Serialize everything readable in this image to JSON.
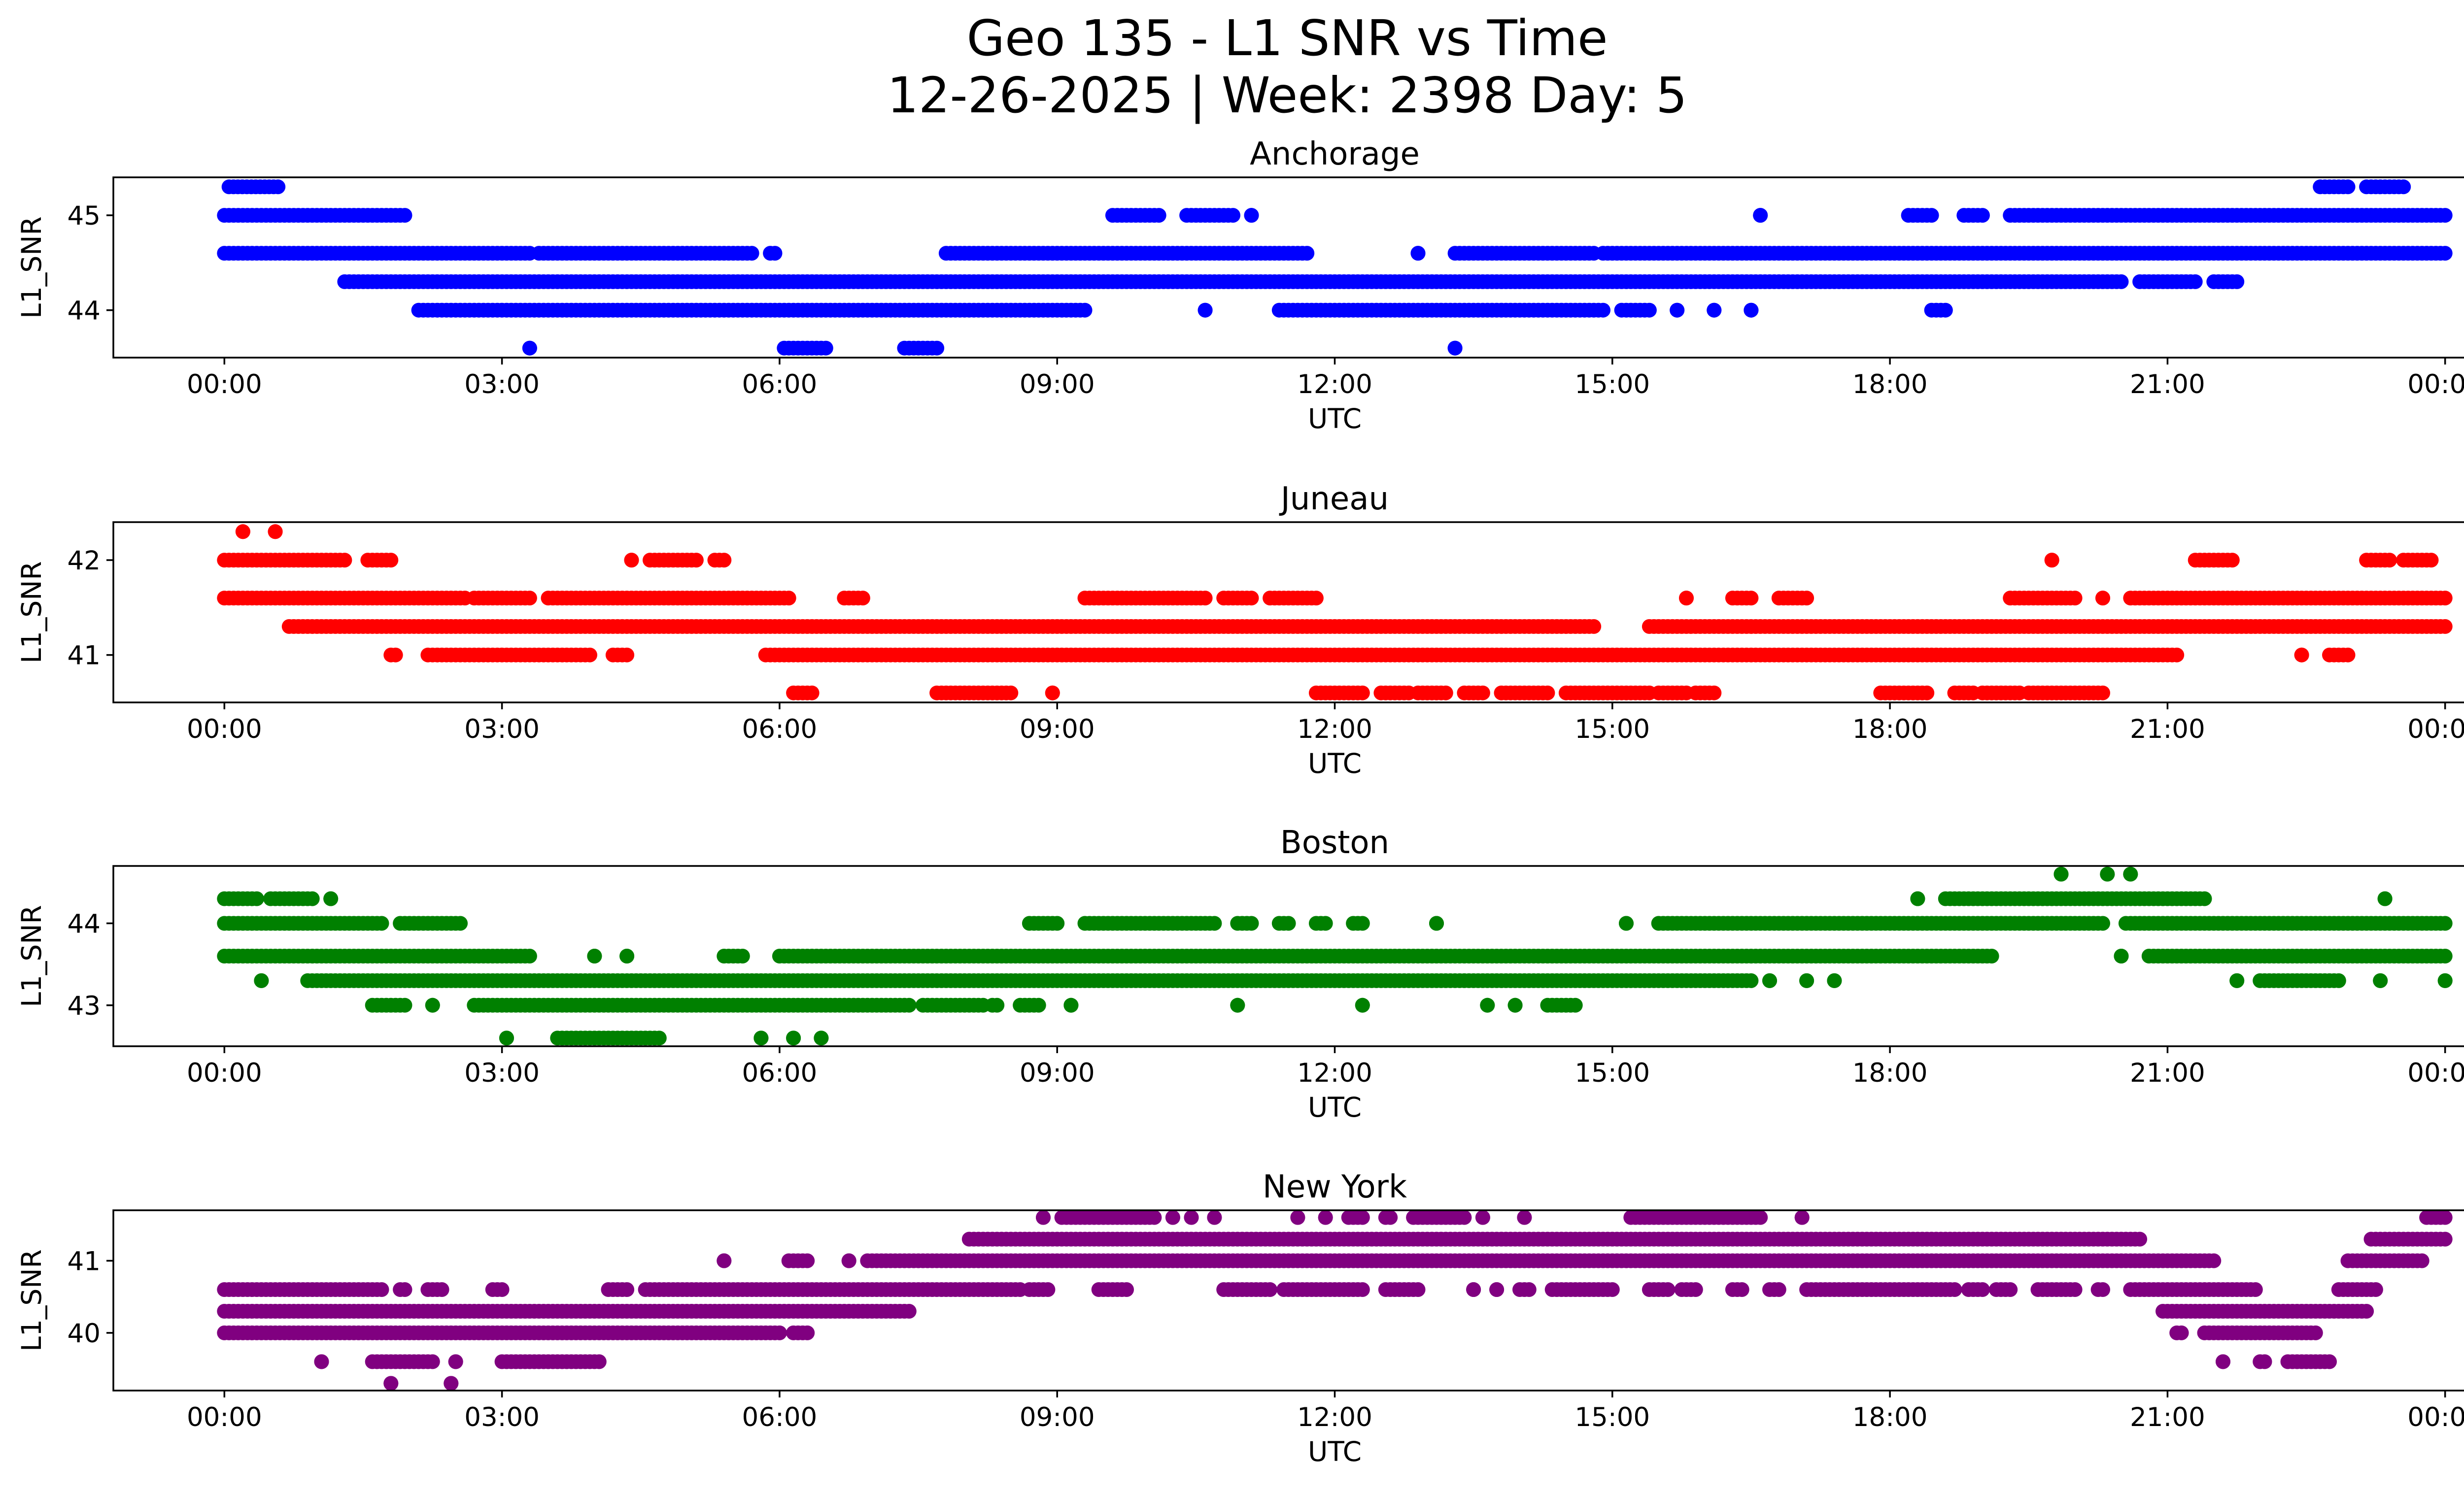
{
  "figure": {
    "title_line1": "Geo 135 - L1 SNR vs Time",
    "title_line2": "12-26-2025 | Week: 2398 Day: 5"
  },
  "chart_data": [
    {
      "type": "scatter",
      "title": "Anchorage",
      "xlabel": "UTC",
      "ylabel": "L1_SNR",
      "color": "#0000ff",
      "xlim": [
        -1.2,
        25.2
      ],
      "ylim": [
        43.5,
        45.4
      ],
      "xticks": [
        "00:00",
        "03:00",
        "06:00",
        "09:00",
        "12:00",
        "15:00",
        "18:00",
        "21:00",
        "00:00"
      ],
      "yticks": [
        44,
        45
      ],
      "series": [
        {
          "y": 45.3,
          "segments": [
            [
              0.05,
              0.58
            ],
            [
              22.65,
              22.95
            ],
            [
              23.15,
              23.55
            ]
          ]
        },
        {
          "y": 45.0,
          "segments": [
            [
              0.0,
              1.95
            ],
            [
              9.6,
              10.1
            ],
            [
              10.4,
              10.9
            ],
            [
              11.1,
              11.1
            ],
            [
              16.6,
              16.6
            ],
            [
              18.2,
              18.45
            ],
            [
              18.8,
              19.0
            ],
            [
              19.3,
              24.0
            ]
          ]
        },
        {
          "y": 44.6,
          "segments": [
            [
              0.0,
              3.3
            ],
            [
              3.4,
              5.7
            ],
            [
              5.9,
              5.95
            ],
            [
              7.8,
              11.7
            ],
            [
              12.9,
              12.9
            ],
            [
              13.3,
              14.8
            ],
            [
              14.9,
              24.0
            ]
          ]
        },
        {
          "y": 44.3,
          "segments": [
            [
              1.3,
              20.5
            ],
            [
              20.7,
              21.3
            ],
            [
              21.5,
              21.75
            ]
          ]
        },
        {
          "y": 44.0,
          "segments": [
            [
              2.1,
              9.3
            ],
            [
              10.6,
              10.6
            ],
            [
              11.4,
              14.9
            ],
            [
              15.1,
              15.4
            ],
            [
              15.7,
              15.7
            ],
            [
              16.1,
              16.1
            ],
            [
              16.5,
              16.5
            ],
            [
              18.45,
              18.6
            ]
          ]
        },
        {
          "y": 43.6,
          "segments": [
            [
              3.3,
              3.3
            ],
            [
              6.05,
              6.5
            ],
            [
              7.35,
              7.7
            ],
            [
              13.3,
              13.3
            ]
          ]
        }
      ]
    },
    {
      "type": "scatter",
      "title": "Juneau",
      "xlabel": "UTC",
      "ylabel": "L1_SNR",
      "color": "#ff0000",
      "xlim": [
        -1.2,
        25.2
      ],
      "ylim": [
        40.5,
        42.4
      ],
      "xticks": [
        "00:00",
        "03:00",
        "06:00",
        "09:00",
        "12:00",
        "15:00",
        "18:00",
        "21:00",
        "00:00"
      ],
      "yticks": [
        41,
        42
      ],
      "series": [
        {
          "y": 42.3,
          "segments": [
            [
              0.2,
              0.2
            ],
            [
              0.55,
              0.55
            ]
          ]
        },
        {
          "y": 42.0,
          "segments": [
            [
              0.0,
              1.3
            ],
            [
              1.55,
              1.8
            ],
            [
              4.4,
              4.4
            ],
            [
              4.6,
              5.1
            ],
            [
              5.3,
              5.4
            ],
            [
              19.75,
              19.75
            ],
            [
              21.3,
              21.7
            ],
            [
              23.15,
              23.4
            ],
            [
              23.55,
              23.85
            ]
          ]
        },
        {
          "y": 41.6,
          "segments": [
            [
              0.0,
              2.6
            ],
            [
              2.7,
              3.3
            ],
            [
              3.5,
              6.1
            ],
            [
              6.7,
              6.9
            ],
            [
              9.3,
              10.6
            ],
            [
              10.8,
              11.1
            ],
            [
              11.3,
              11.8
            ],
            [
              15.8,
              15.8
            ],
            [
              16.3,
              16.5
            ],
            [
              16.8,
              17.1
            ],
            [
              19.3,
              20.0
            ],
            [
              20.3,
              20.3
            ],
            [
              20.6,
              24.0
            ]
          ]
        },
        {
          "y": 41.3,
          "segments": [
            [
              0.7,
              14.8
            ],
            [
              15.4,
              24.0
            ]
          ]
        },
        {
          "y": 41.0,
          "segments": [
            [
              1.8,
              1.85
            ],
            [
              2.2,
              3.95
            ],
            [
              4.2,
              4.35
            ],
            [
              5.85,
              21.1
            ],
            [
              22.45,
              22.45
            ],
            [
              22.75,
              22.95
            ]
          ]
        },
        {
          "y": 40.6,
          "segments": [
            [
              6.15,
              6.35
            ],
            [
              7.7,
              8.5
            ],
            [
              8.95,
              8.95
            ],
            [
              11.8,
              12.3
            ],
            [
              12.5,
              12.8
            ],
            [
              12.9,
              13.2
            ],
            [
              13.4,
              13.6
            ],
            [
              13.8,
              14.3
            ],
            [
              14.5,
              15.4
            ],
            [
              15.5,
              15.8
            ],
            [
              15.9,
              16.1
            ],
            [
              17.9,
              18.4
            ],
            [
              18.7,
              18.9
            ],
            [
              19.0,
              19.4
            ],
            [
              19.5,
              20.3
            ]
          ]
        }
      ]
    },
    {
      "type": "scatter",
      "title": "Boston",
      "xlabel": "UTC",
      "ylabel": "L1_SNR",
      "color": "#008000",
      "xlim": [
        -1.2,
        25.2
      ],
      "ylim": [
        42.5,
        44.7
      ],
      "xticks": [
        "00:00",
        "03:00",
        "06:00",
        "09:00",
        "12:00",
        "15:00",
        "18:00",
        "21:00",
        "00:00"
      ],
      "yticks": [
        43,
        44
      ],
      "series": [
        {
          "y": 44.6,
          "segments": [
            [
              19.85,
              19.85
            ],
            [
              20.35,
              20.35
            ],
            [
              20.6,
              20.6
            ]
          ]
        },
        {
          "y": 44.3,
          "segments": [
            [
              0.0,
              0.35
            ],
            [
              0.5,
              0.95
            ],
            [
              1.15,
              1.15
            ],
            [
              18.3,
              18.3
            ],
            [
              18.6,
              21.4
            ],
            [
              23.35,
              23.35
            ]
          ]
        },
        {
          "y": 44.0,
          "segments": [
            [
              0.0,
              1.7
            ],
            [
              1.9,
              2.55
            ],
            [
              8.7,
              9.0
            ],
            [
              9.3,
              10.7
            ],
            [
              10.95,
              11.1
            ],
            [
              11.4,
              11.5
            ],
            [
              11.8,
              11.9
            ],
            [
              12.2,
              12.3
            ],
            [
              13.1,
              13.1
            ],
            [
              15.15,
              15.15
            ],
            [
              15.5,
              20.3
            ],
            [
              20.55,
              24.0
            ]
          ]
        },
        {
          "y": 43.6,
          "segments": [
            [
              0.0,
              3.3
            ],
            [
              4.0,
              4.0
            ],
            [
              4.35,
              4.35
            ],
            [
              5.4,
              5.6
            ],
            [
              6.0,
              19.1
            ],
            [
              20.5,
              20.5
            ],
            [
              20.8,
              21.1
            ],
            [
              21.15,
              24.0
            ]
          ]
        },
        {
          "y": 43.3,
          "segments": [
            [
              0.4,
              0.4
            ],
            [
              0.9,
              16.5
            ],
            [
              16.7,
              16.7
            ],
            [
              17.1,
              17.1
            ],
            [
              17.4,
              17.4
            ],
            [
              21.75,
              21.75
            ],
            [
              22.0,
              22.85
            ],
            [
              23.3,
              23.3
            ],
            [
              24.0,
              24.0
            ]
          ]
        },
        {
          "y": 43.0,
          "segments": [
            [
              1.6,
              1.95
            ],
            [
              2.25,
              2.25
            ],
            [
              2.7,
              7.4
            ],
            [
              7.55,
              8.2
            ],
            [
              8.3,
              8.35
            ],
            [
              8.6,
              8.8
            ],
            [
              9.15,
              9.15
            ],
            [
              10.95,
              10.95
            ],
            [
              12.3,
              12.3
            ],
            [
              13.65,
              13.65
            ],
            [
              13.95,
              13.95
            ],
            [
              14.3,
              14.6
            ]
          ]
        },
        {
          "y": 42.6,
          "segments": [
            [
              3.05,
              3.05
            ],
            [
              3.6,
              4.7
            ],
            [
              5.8,
              5.8
            ],
            [
              6.15,
              6.15
            ],
            [
              6.45,
              6.45
            ]
          ]
        }
      ]
    },
    {
      "type": "scatter",
      "title": "New York",
      "xlabel": "UTC",
      "ylabel": "L1_SNR",
      "color": "#800080",
      "xlim": [
        -1.2,
        25.2
      ],
      "ylim": [
        39.2,
        41.7
      ],
      "xticks": [
        "00:00",
        "03:00",
        "06:00",
        "09:00",
        "12:00",
        "15:00",
        "18:00",
        "21:00",
        "00:00"
      ],
      "yticks": [
        40,
        41
      ],
      "series": [
        {
          "y": 41.6,
          "segments": [
            [
              8.85,
              8.85
            ],
            [
              9.05,
              10.05
            ],
            [
              10.25,
              10.25
            ],
            [
              10.45,
              10.45
            ],
            [
              10.7,
              10.7
            ],
            [
              11.6,
              11.6
            ],
            [
              11.9,
              11.9
            ],
            [
              12.15,
              12.3
            ],
            [
              12.55,
              12.6
            ],
            [
              12.85,
              13.4
            ],
            [
              13.6,
              13.6
            ],
            [
              14.05,
              14.05
            ],
            [
              15.2,
              16.6
            ],
            [
              17.05,
              17.05
            ],
            [
              23.8,
              24.0
            ]
          ]
        },
        {
          "y": 41.3,
          "segments": [
            [
              8.05,
              20.7
            ],
            [
              23.2,
              24.0
            ]
          ]
        },
        {
          "y": 41.0,
          "segments": [
            [
              5.4,
              5.4
            ],
            [
              6.1,
              6.3
            ],
            [
              6.75,
              6.75
            ],
            [
              6.95,
              21.5
            ],
            [
              22.95,
              23.75
            ]
          ]
        },
        {
          "y": 40.6,
          "segments": [
            [
              0.0,
              1.7
            ],
            [
              1.9,
              1.95
            ],
            [
              2.2,
              2.35
            ],
            [
              2.9,
              3.0
            ],
            [
              4.15,
              4.35
            ],
            [
              4.55,
              8.6
            ],
            [
              8.7,
              8.9
            ],
            [
              9.45,
              9.75
            ],
            [
              10.8,
              11.3
            ],
            [
              11.45,
              12.3
            ],
            [
              12.55,
              12.9
            ],
            [
              13.5,
              13.5
            ],
            [
              13.75,
              13.75
            ],
            [
              14.0,
              14.1
            ],
            [
              14.35,
              15.0
            ],
            [
              15.4,
              15.6
            ],
            [
              15.75,
              15.9
            ],
            [
              16.3,
              16.4
            ],
            [
              16.7,
              16.8
            ],
            [
              17.1,
              18.7
            ],
            [
              18.85,
              19.0
            ],
            [
              19.15,
              19.3
            ],
            [
              19.6,
              20.0
            ],
            [
              20.25,
              20.3
            ],
            [
              20.6,
              21.95
            ],
            [
              22.85,
              23.25
            ]
          ]
        },
        {
          "y": 40.3,
          "segments": [
            [
              0.0,
              7.4
            ],
            [
              20.95,
              23.15
            ]
          ]
        },
        {
          "y": 40.0,
          "segments": [
            [
              0.0,
              6.0
            ],
            [
              6.15,
              6.3
            ],
            [
              21.1,
              21.15
            ],
            [
              21.4,
              22.6
            ]
          ]
        },
        {
          "y": 39.6,
          "segments": [
            [
              1.05,
              1.05
            ],
            [
              1.6,
              2.25
            ],
            [
              2.5,
              2.5
            ],
            [
              3.0,
              4.05
            ],
            [
              21.6,
              21.6
            ],
            [
              22.0,
              22.05
            ],
            [
              22.3,
              22.75
            ]
          ]
        },
        {
          "y": 39.3,
          "segments": [
            [
              1.8,
              1.8
            ],
            [
              2.45,
              2.45
            ]
          ]
        }
      ]
    }
  ]
}
